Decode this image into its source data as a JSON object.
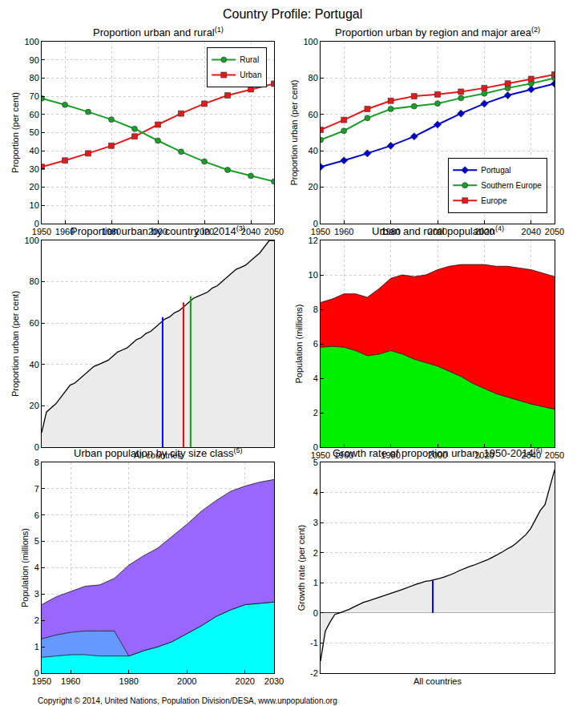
{
  "title": "Country Profile: Portugal",
  "footer": "Copyright © 2014, United Nations, Population Division/DESA, www.unpopulation.org",
  "chart_data": [
    {
      "type": "line",
      "title": "Proportion urban and rural",
      "title_mark": "(1)",
      "ylabel": "Proportion (per cent)",
      "x": [
        1950,
        1960,
        1970,
        1980,
        1990,
        2000,
        2010,
        2020,
        2030,
        2040,
        2050
      ],
      "xlim": [
        1950,
        2050
      ],
      "xticks": [
        1950,
        1960,
        1980,
        2000,
        2020,
        2040,
        2050
      ],
      "ylim": [
        0,
        100
      ],
      "yticks": [
        0,
        10,
        20,
        30,
        40,
        50,
        60,
        70,
        80,
        90,
        100
      ],
      "grid": true,
      "legend": "northeast",
      "series": [
        {
          "name": "Urban",
          "color": "#e31a1c",
          "marker": "square",
          "values": [
            31.2,
            34.7,
            38.6,
            42.8,
            47.9,
            54.4,
            60.5,
            65.9,
            70.5,
            73.8,
            76.9
          ]
        },
        {
          "name": "Rural",
          "color": "#1a9e2a",
          "marker": "circle",
          "values": [
            68.8,
            65.3,
            61.4,
            57.2,
            52.1,
            45.6,
            39.5,
            34.1,
            29.5,
            26.2,
            23.1
          ]
        }
      ]
    },
    {
      "type": "line",
      "title": "Proportion urban by region and major area",
      "title_mark": "(2)",
      "ylabel": "Proportion urban (per cent)",
      "x": [
        1950,
        1960,
        1970,
        1980,
        1990,
        2000,
        2010,
        2020,
        2030,
        2040,
        2050
      ],
      "xlim": [
        1950,
        2050
      ],
      "xticks": [
        1950,
        1960,
        1980,
        2000,
        2020,
        2040,
        2050
      ],
      "ylim": [
        0,
        100
      ],
      "yticks": [
        0,
        20,
        40,
        60,
        80,
        100
      ],
      "grid": true,
      "legend": "southeast",
      "series": [
        {
          "name": "Portugal",
          "color": "#0000cc",
          "marker": "diamond",
          "values": [
            31.2,
            34.7,
            38.6,
            42.8,
            47.9,
            54.4,
            60.5,
            65.9,
            70.5,
            73.8,
            76.9
          ]
        },
        {
          "name": "Southern Europe",
          "color": "#1a9e2a",
          "marker": "circle",
          "values": [
            46,
            51,
            58,
            63,
            64.5,
            66,
            69,
            71.5,
            74.5,
            77,
            80
          ]
        },
        {
          "name": "Europe",
          "color": "#e31a1c",
          "marker": "square",
          "values": [
            51.5,
            57,
            63,
            67.5,
            70,
            71,
            72.5,
            74.5,
            77,
            79.5,
            82
          ]
        }
      ]
    },
    {
      "type": "area",
      "title": "Proportion urban by country in 2014",
      "title_mark": "(3)",
      "xlabel": "All countries",
      "ylabel": "Proportion urban (per cent)",
      "xlim": [
        0,
        49
      ],
      "ylim": [
        0,
        100
      ],
      "yticks": [
        0,
        20,
        40,
        60,
        80,
        100
      ],
      "grid": true,
      "tick_labels": "y",
      "series": [
        {
          "color": "#000000",
          "values": [
            7,
            17,
            19,
            21,
            24,
            27,
            30,
            31,
            33,
            35,
            37,
            39,
            40,
            41,
            42,
            44,
            46,
            47,
            48,
            50,
            52,
            53,
            55,
            56,
            58,
            60,
            62,
            63,
            65,
            66,
            68,
            70,
            72,
            73,
            74,
            75,
            77,
            78,
            80,
            82,
            84,
            86,
            87,
            88,
            90,
            92,
            94,
            97,
            100,
            100
          ]
        }
      ],
      "reference_lines": [
        {
          "x": 25.5,
          "value": 62.9,
          "color": "#0000ff"
        },
        {
          "x": 29.9,
          "value": 70,
          "color": "#ff0000"
        },
        {
          "x": 31.4,
          "value": 73,
          "color": "#00aa00"
        }
      ]
    },
    {
      "type": "area",
      "title": "Urban and rural population",
      "title_mark": "(4)",
      "ylabel": "Population (millions)",
      "stacked": true,
      "x": [
        1950,
        1955,
        1960,
        1965,
        1970,
        1975,
        1980,
        1985,
        1990,
        1995,
        2000,
        2005,
        2010,
        2015,
        2020,
        2025,
        2030,
        2035,
        2040,
        2045,
        2050
      ],
      "xlim": [
        1950,
        2050
      ],
      "xticks": [
        1950,
        1960,
        1980,
        2000,
        2020,
        2040,
        2050
      ],
      "ylim": [
        0,
        12
      ],
      "yticks": [
        0,
        2,
        4,
        6,
        8,
        10,
        12
      ],
      "grid": true,
      "series": [
        {
          "color": "#00ee00",
          "values": [
            5.8,
            5.85,
            5.8,
            5.6,
            5.3,
            5.4,
            5.6,
            5.4,
            5.1,
            4.9,
            4.7,
            4.4,
            4.1,
            3.7,
            3.4,
            3.1,
            2.9,
            2.7,
            2.5,
            2.35,
            2.2
          ]
        },
        {
          "color": "#ff0000",
          "values": [
            2.6,
            2.75,
            3.1,
            3.3,
            3.4,
            3.8,
            4.2,
            4.6,
            4.8,
            5.1,
            5.6,
            6.1,
            6.5,
            6.9,
            7.2,
            7.4,
            7.6,
            7.7,
            7.8,
            7.75,
            7.7
          ]
        }
      ]
    },
    {
      "type": "area",
      "title": "Urban population by city size class",
      "title_mark": "(5)",
      "ylabel": "Population (millions)",
      "stacked": true,
      "x": [
        1950,
        1955,
        1960,
        1965,
        1970,
        1975,
        1980,
        1985,
        1990,
        1995,
        2000,
        2005,
        2010,
        2015,
        2020,
        2025,
        2030
      ],
      "xlim": [
        1950,
        2030
      ],
      "xticks": [
        1950,
        1960,
        1980,
        2000,
        2020,
        2030
      ],
      "ylim": [
        0,
        8
      ],
      "yticks": [
        0,
        1,
        2,
        3,
        4,
        5,
        6,
        7,
        8
      ],
      "grid": true,
      "series": [
        {
          "color": "#00ffff",
          "values": [
            0.6,
            0.65,
            0.7,
            0.7,
            0.65,
            0.65,
            0.65,
            0.85,
            1.0,
            1.2,
            1.5,
            1.8,
            2.15,
            2.4,
            2.6,
            2.65,
            2.7
          ]
        },
        {
          "color": "#6699ff",
          "values": [
            0.7,
            0.8,
            0.85,
            0.9,
            0.95,
            0.95,
            0,
            0,
            0,
            0,
            0,
            0,
            0,
            0,
            0,
            0,
            0
          ]
        },
        {
          "color": "#9966ff",
          "values": [
            1.3,
            1.45,
            1.55,
            1.7,
            1.75,
            2.0,
            3.45,
            3.6,
            3.75,
            4.0,
            4.15,
            4.35,
            4.4,
            4.5,
            4.5,
            4.6,
            4.65
          ]
        }
      ]
    },
    {
      "type": "area",
      "title": "Growth rate of proportion urban, 1950-2014",
      "title_mark": "(6)",
      "xlabel": "All countries",
      "ylabel": "Growth rate (per cent)",
      "xlim": [
        0,
        49
      ],
      "ylim": [
        -2,
        5
      ],
      "yticks": [
        -2,
        -1,
        0,
        1,
        2,
        3,
        4,
        5
      ],
      "grid": true,
      "tick_labels": "y",
      "series": [
        {
          "color": "#000000",
          "values": [
            -1.6,
            -0.6,
            -0.3,
            -0.05,
            0.0,
            0.05,
            0.12,
            0.2,
            0.28,
            0.35,
            0.4,
            0.45,
            0.5,
            0.56,
            0.62,
            0.67,
            0.72,
            0.77,
            0.83,
            0.9,
            0.95,
            1.0,
            1.05,
            1.07,
            1.1,
            1.15,
            1.2,
            1.25,
            1.32,
            1.4,
            1.47,
            1.53,
            1.58,
            1.64,
            1.7,
            1.77,
            1.85,
            1.93,
            2.02,
            2.12,
            2.2,
            2.32,
            2.45,
            2.6,
            2.8,
            3.1,
            3.4,
            3.6,
            4.2,
            4.75
          ]
        }
      ],
      "reference_lines": [
        {
          "x": 23.5,
          "value": 1.08,
          "color": "#0000ff"
        }
      ]
    }
  ]
}
